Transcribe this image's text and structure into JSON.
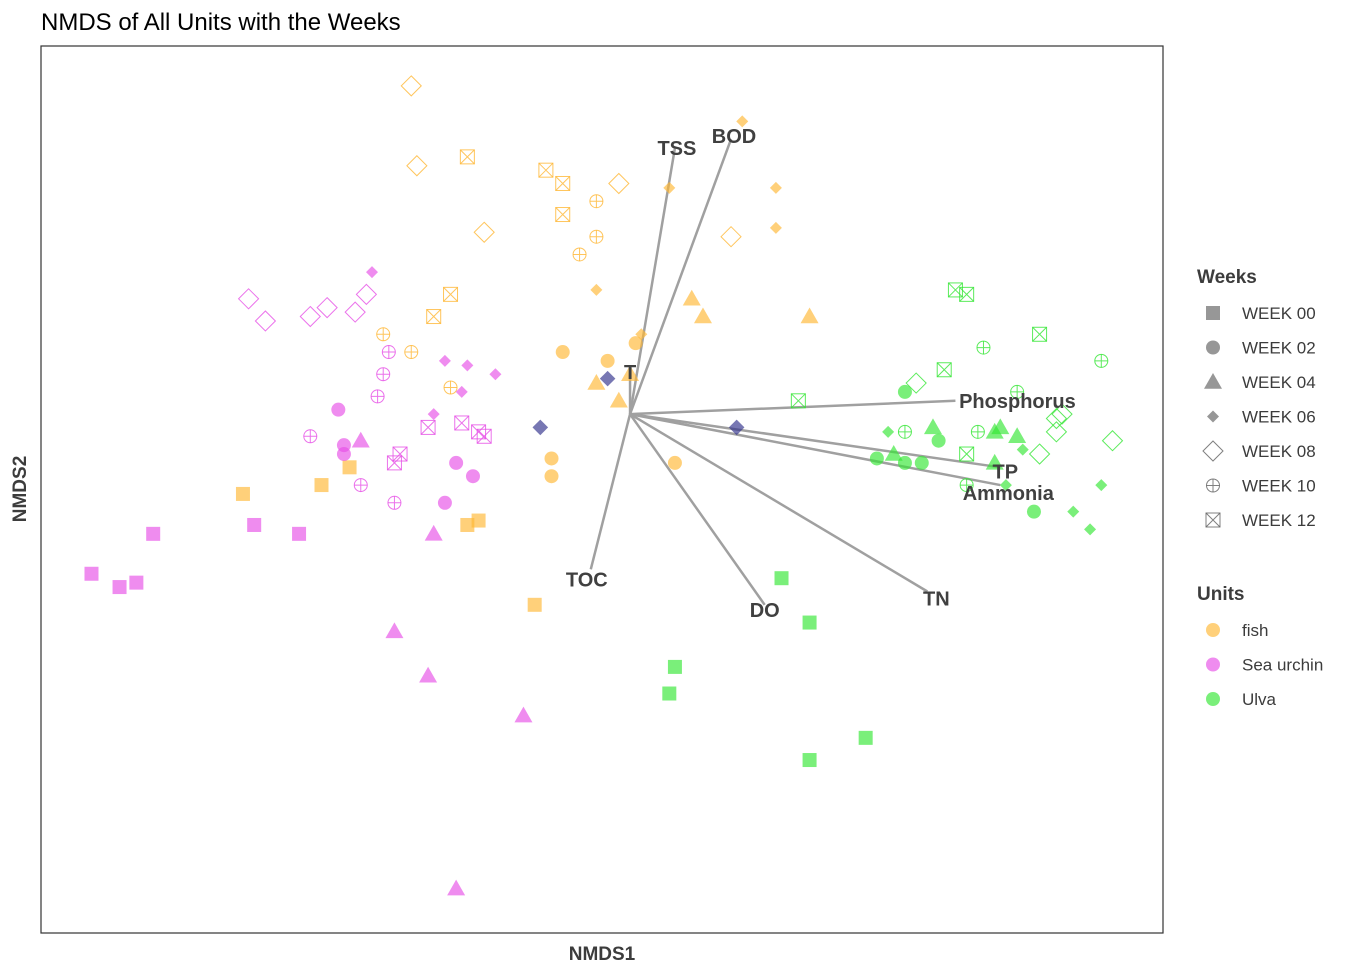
{
  "chart_data": {
    "type": "scatter",
    "title": "NMDS of All Units with the Weeks",
    "xlabel": "NMDS1",
    "ylabel": "NMDS2",
    "xlim": [
      -1.0,
      1.0
    ],
    "ylim": [
      -1.0,
      1.0
    ],
    "grid": false,
    "axis_ticks_shown": false,
    "legend_placement": "right",
    "legend_weeks": {
      "title": "Weeks",
      "entries": [
        {
          "label": "WEEK 00",
          "shape": "square"
        },
        {
          "label": "WEEK 02",
          "shape": "circle"
        },
        {
          "label": "WEEK 04",
          "shape": "triangle"
        },
        {
          "label": "WEEK 06",
          "shape": "diamond"
        },
        {
          "label": "WEEK 08",
          "shape": "open-diamond"
        },
        {
          "label": "WEEK 10",
          "shape": "circle-plus"
        },
        {
          "label": "WEEK 12",
          "shape": "square-cross"
        }
      ]
    },
    "legend_units": {
      "title": "Units",
      "entries": [
        {
          "label": "fish",
          "color": "#FFB733"
        },
        {
          "label": "Sea urchin",
          "color": "#E64FE6"
        },
        {
          "label": "Ulva",
          "color": "#33E633"
        }
      ]
    },
    "series": [
      {
        "unit": "fish",
        "points": {
          "WEEK 00": [
            [
              -0.64,
              -0.01
            ],
            [
              -0.5,
              0.01
            ],
            [
              -0.45,
              0.05
            ],
            [
              -0.24,
              -0.08
            ],
            [
              -0.22,
              -0.07
            ],
            [
              -0.12,
              -0.26
            ]
          ],
          "WEEK 02": [
            [
              -0.07,
              0.31
            ],
            [
              0.01,
              0.29
            ],
            [
              -0.09,
              0.07
            ],
            [
              -0.09,
              0.03
            ],
            [
              0.13,
              0.06
            ],
            [
              0.06,
              0.33
            ]
          ],
          "WEEK 04": [
            [
              0.16,
              0.43
            ],
            [
              0.18,
              0.39
            ],
            [
              0.37,
              0.39
            ],
            [
              -0.01,
              0.24
            ],
            [
              0.05,
              0.26
            ],
            [
              0.03,
              0.2
            ]
          ],
          "WEEK 06": [
            [
              0.25,
              0.83
            ],
            [
              0.12,
              0.68
            ],
            [
              0.31,
              0.68
            ],
            [
              0.31,
              0.59
            ],
            [
              -0.01,
              0.45
            ],
            [
              0.07,
              0.35
            ]
          ],
          "WEEK 08": [
            [
              -0.34,
              0.91
            ],
            [
              -0.33,
              0.73
            ],
            [
              -0.21,
              0.58
            ],
            [
              0.03,
              0.69
            ],
            [
              0.23,
              0.57
            ]
          ],
          "WEEK 10": [
            [
              -0.01,
              0.65
            ],
            [
              -0.01,
              0.57
            ],
            [
              -0.04,
              0.53
            ],
            [
              -0.39,
              0.35
            ],
            [
              -0.34,
              0.31
            ],
            [
              -0.27,
              0.23
            ]
          ],
          "WEEK 12": [
            [
              -0.24,
              0.75
            ],
            [
              -0.1,
              0.72
            ],
            [
              -0.07,
              0.69
            ],
            [
              -0.07,
              0.62
            ],
            [
              -0.27,
              0.44
            ],
            [
              -0.3,
              0.39
            ]
          ]
        }
      },
      {
        "unit": "Sea urchin",
        "points": {
          "WEEK 00": [
            [
              -0.8,
              -0.1
            ],
            [
              -0.62,
              -0.08
            ],
            [
              -0.54,
              -0.1
            ],
            [
              -0.91,
              -0.19
            ],
            [
              -0.86,
              -0.22
            ],
            [
              -0.83,
              -0.21
            ]
          ],
          "WEEK 02": [
            [
              -0.47,
              0.18
            ],
            [
              -0.46,
              0.1
            ],
            [
              -0.46,
              0.08
            ],
            [
              -0.26,
              0.06
            ],
            [
              -0.23,
              0.03
            ],
            [
              -0.28,
              -0.03
            ]
          ],
          "WEEK 04": [
            [
              -0.43,
              0.11
            ],
            [
              -0.3,
              -0.1
            ],
            [
              -0.37,
              -0.32
            ],
            [
              -0.31,
              -0.42
            ],
            [
              -0.14,
              -0.51
            ],
            [
              -0.26,
              -0.9
            ]
          ],
          "WEEK 06": [
            [
              -0.41,
              0.49
            ],
            [
              -0.28,
              0.29
            ],
            [
              -0.24,
              0.28
            ],
            [
              -0.19,
              0.26
            ],
            [
              -0.25,
              0.22
            ],
            [
              -0.3,
              0.17
            ]
          ],
          "WEEK 08": [
            [
              -0.63,
              0.43
            ],
            [
              -0.6,
              0.38
            ],
            [
              -0.52,
              0.39
            ],
            [
              -0.49,
              0.41
            ],
            [
              -0.44,
              0.4
            ],
            [
              -0.42,
              0.44
            ]
          ],
          "WEEK 10": [
            [
              -0.38,
              0.31
            ],
            [
              -0.39,
              0.26
            ],
            [
              -0.4,
              0.21
            ],
            [
              -0.52,
              0.12
            ],
            [
              -0.43,
              0.01
            ],
            [
              -0.37,
              -0.03
            ]
          ],
          "WEEK 12": [
            [
              -0.31,
              0.14
            ],
            [
              -0.25,
              0.15
            ],
            [
              -0.22,
              0.13
            ],
            [
              -0.21,
              0.12
            ],
            [
              -0.36,
              0.08
            ],
            [
              -0.37,
              0.06
            ]
          ]
        }
      },
      {
        "unit": "Ulva",
        "points": {
          "WEEK 00": [
            [
              0.32,
              -0.2
            ],
            [
              0.37,
              -0.3
            ],
            [
              0.13,
              -0.4
            ],
            [
              0.12,
              -0.46
            ],
            [
              0.47,
              -0.56
            ],
            [
              0.37,
              -0.61
            ]
          ],
          "WEEK 02": [
            [
              0.54,
              0.22
            ],
            [
              0.6,
              0.11
            ],
            [
              0.49,
              0.07
            ],
            [
              0.54,
              0.06
            ],
            [
              0.57,
              0.06
            ],
            [
              0.77,
              -0.05
            ]
          ],
          "WEEK 04": [
            [
              0.59,
              0.14
            ],
            [
              0.7,
              0.13
            ],
            [
              0.71,
              0.14
            ],
            [
              0.74,
              0.12
            ],
            [
              0.52,
              0.08
            ],
            [
              0.7,
              0.06
            ]
          ],
          "WEEK 06": [
            [
              0.51,
              0.13
            ],
            [
              0.75,
              0.09
            ],
            [
              0.89,
              0.01
            ],
            [
              0.84,
              -0.05
            ],
            [
              0.87,
              -0.09
            ],
            [
              0.72,
              0.01
            ]
          ],
          "WEEK 08": [
            [
              0.56,
              0.24
            ],
            [
              0.81,
              0.16
            ],
            [
              0.82,
              0.17
            ],
            [
              0.81,
              0.13
            ],
            [
              0.78,
              0.08
            ],
            [
              0.91,
              0.11
            ]
          ],
          "WEEK 10": [
            [
              0.68,
              0.32
            ],
            [
              0.89,
              0.29
            ],
            [
              0.74,
              0.22
            ],
            [
              0.54,
              0.13
            ],
            [
              0.67,
              0.13
            ],
            [
              0.65,
              0.01
            ]
          ],
          "WEEK 12": [
            [
              0.63,
              0.45
            ],
            [
              0.65,
              0.44
            ],
            [
              0.78,
              0.35
            ],
            [
              0.61,
              0.27
            ],
            [
              0.35,
              0.2
            ],
            [
              0.65,
              0.08
            ]
          ]
        }
      }
    ],
    "overlap_points": {
      "color": "#2E2E8A",
      "shape": "diamond",
      "points": [
        [
          0.01,
          0.25
        ],
        [
          -0.11,
          0.14
        ],
        [
          0.24,
          0.14
        ]
      ]
    },
    "vectors": {
      "origin": [
        0.05,
        0.17
      ],
      "color": "#A0A0A0",
      "items": [
        {
          "label": "TSS",
          "end": [
            0.13,
            0.77
          ]
        },
        {
          "label": "BOD",
          "end": [
            0.23,
            0.79
          ]
        },
        {
          "label": "T",
          "end": [
            0.05,
            0.26
          ]
        },
        {
          "label": "Phosphorus",
          "end": [
            0.63,
            0.2
          ]
        },
        {
          "label": "TP",
          "end": [
            0.71,
            0.05
          ]
        },
        {
          "label": "Ammonia",
          "end": [
            0.71,
            0.01
          ]
        },
        {
          "label": "TN",
          "end": [
            0.58,
            -0.23
          ]
        },
        {
          "label": "DO",
          "end": [
            0.29,
            -0.26
          ]
        },
        {
          "label": "TOC",
          "end": [
            -0.02,
            -0.18
          ]
        }
      ]
    }
  }
}
